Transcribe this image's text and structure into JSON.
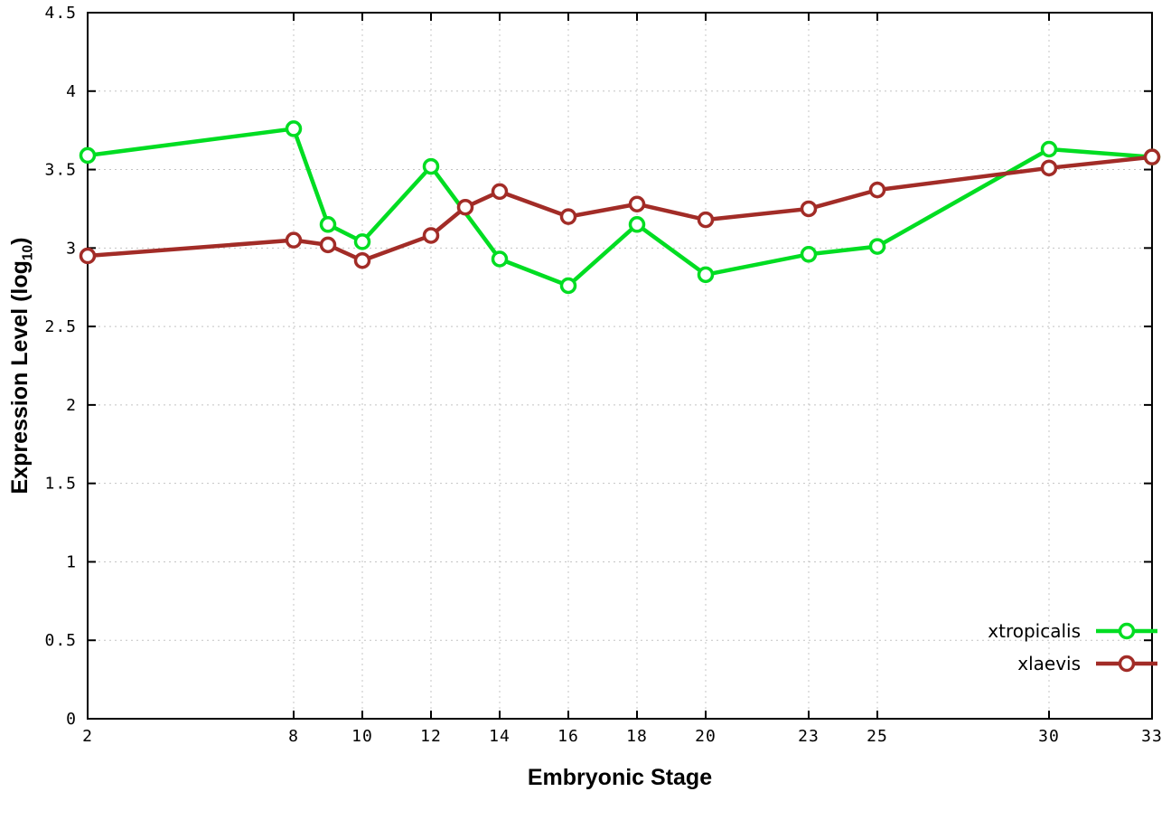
{
  "chart_data": {
    "type": "line",
    "title": "",
    "xlabel": "Embryonic Stage",
    "ylabel": "Expression Level (log10)",
    "ylabel_parts": {
      "main": "Expression Level (log",
      "sub": "10",
      "end": ")"
    },
    "xlim": [
      2,
      33
    ],
    "ylim": [
      0,
      4.5
    ],
    "x_ticks": [
      2,
      8,
      10,
      12,
      14,
      16,
      18,
      20,
      23,
      25,
      30,
      33
    ],
    "x_tick_labels": [
      "2",
      "8",
      "10",
      "12",
      "14",
      "16",
      "18",
      "20",
      "23",
      "25",
      "30",
      "33"
    ],
    "y_ticks": [
      0,
      0.5,
      1,
      1.5,
      2,
      2.5,
      3,
      3.5,
      4,
      4.5
    ],
    "y_tick_labels": [
      "0",
      "0.5",
      "1",
      "1.5",
      "2",
      "2.5",
      "3",
      "3.5",
      "4",
      "4.5"
    ],
    "grid": true,
    "legend_position": "bottom-right-inside",
    "series": [
      {
        "name": "xtropicalis",
        "color": "#00dd22",
        "x": [
          2,
          8,
          9,
          10,
          12,
          14,
          16,
          18,
          20,
          23,
          25,
          30,
          33
        ],
        "y": [
          3.59,
          3.76,
          3.15,
          3.04,
          3.52,
          2.93,
          2.76,
          3.15,
          2.83,
          2.96,
          3.01,
          3.63,
          3.58
        ]
      },
      {
        "name": "xlaevis",
        "color": "#a22c27",
        "x": [
          2,
          8,
          9,
          10,
          12,
          13,
          14,
          16,
          18,
          20,
          23,
          25,
          30,
          33
        ],
        "y": [
          2.95,
          3.05,
          3.02,
          2.92,
          3.08,
          3.26,
          3.36,
          3.2,
          3.28,
          3.18,
          3.25,
          3.37,
          3.51,
          3.58
        ]
      }
    ]
  }
}
